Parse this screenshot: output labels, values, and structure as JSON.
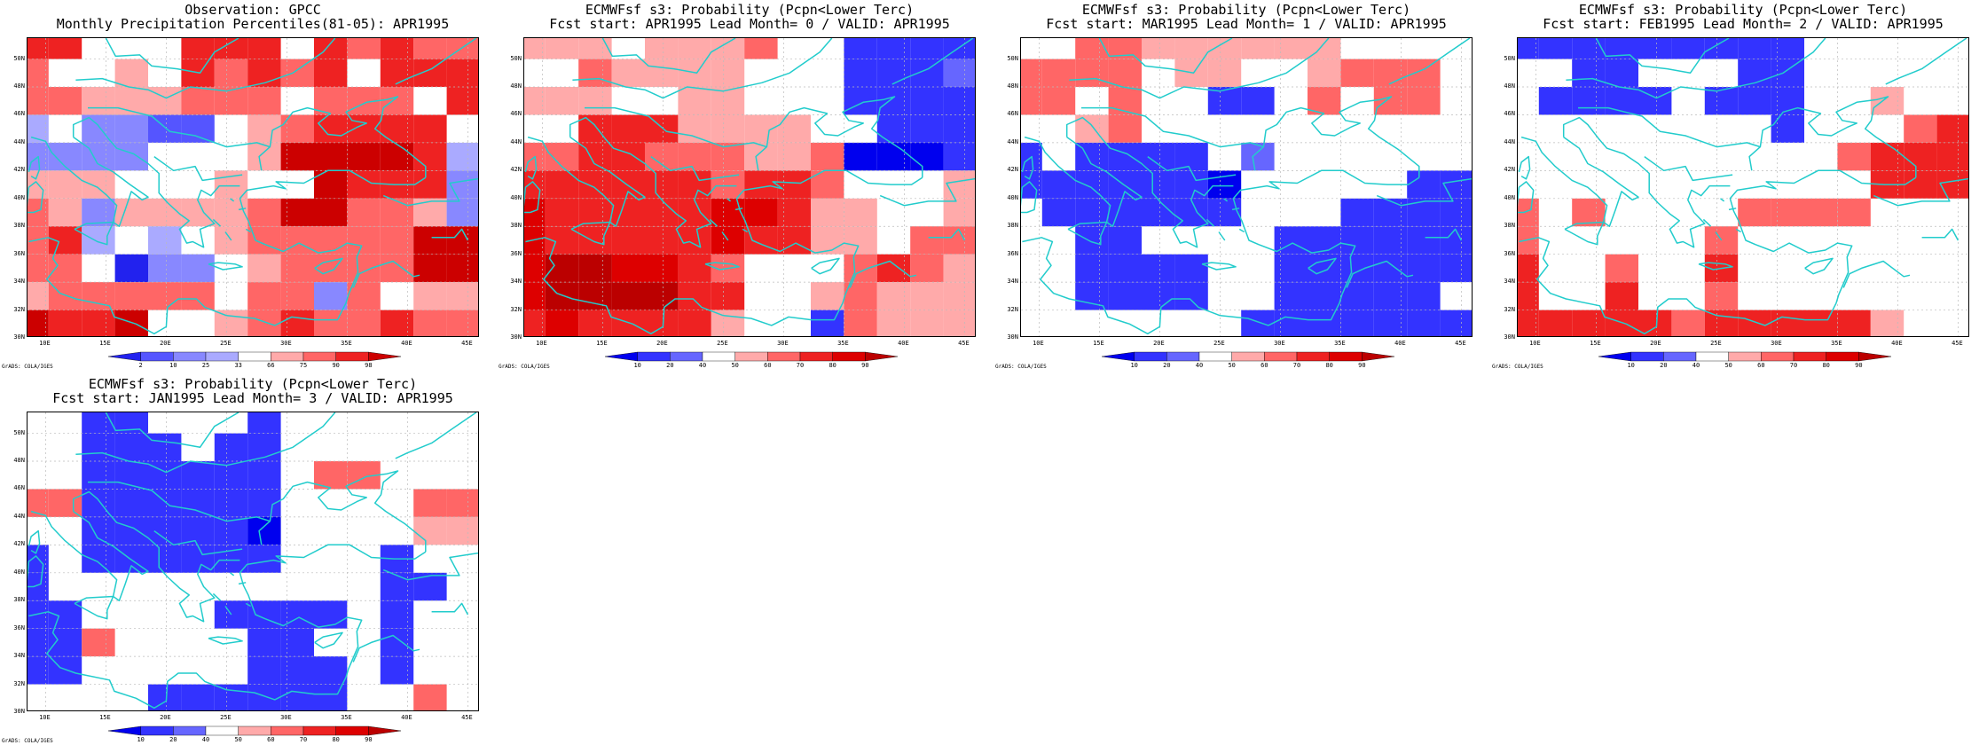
{
  "credit": "GrADS: COLA/IGES",
  "lat_labels": [
    "30N",
    "32N",
    "34N",
    "36N",
    "38N",
    "40N",
    "42N",
    "44N",
    "46N",
    "48N",
    "50N"
  ],
  "lon_labels": [
    "10E",
    "15E",
    "20E",
    "25E",
    "30E",
    "35E",
    "40E",
    "45E"
  ],
  "map_extent": {
    "lon_min": 8.5,
    "lon_max": 46,
    "lat_min": 30,
    "lat_max": 51.5
  },
  "grid_cell_deg": 2.5,
  "colors": {
    "coast": "#22cccc",
    "grid": "#bbbbbb",
    "scale_obs": [
      "#2222ee",
      "#5555ff",
      "#8888ff",
      "#aaaaff",
      "#ffffff",
      "#ffaaaa",
      "#ff6666",
      "#ee2222",
      "#cc0000"
    ],
    "scale_prob": [
      "#0000ee",
      "#3333ff",
      "#6666ff",
      "#ffffff",
      "#ffaaaa",
      "#ff6666",
      "#ee2222",
      "#dd0000",
      "#bb0000"
    ]
  },
  "panels": [
    {
      "title_line1": "Observation: GPCC",
      "title_line2": "Monthly Precipitation Percentiles(81-05): APR1995",
      "colorbar_ticks": [
        "2",
        "10",
        "25",
        "33",
        "66",
        "75",
        "90",
        "98"
      ],
      "palette": "scale_obs",
      "grid": [
        "77444777476766",
        "64454767679777",
        "66555666966697",
        "34221145677774",
        "22224445888873",
        "55544454487772",
        "65255556886652",
        "67343456666688",
        "66402245666688",
        "56666646626455",
        "87784456766766",
        "77748878664666"
      ]
    },
    {
      "title_line1": "ECMWFsf s3: Probability (Pcpn<Lower Terc)",
      "title_line2": "Fcst start: APR1995  Lead Month= 0 / VALID: APR1995",
      "colorbar_ticks": [
        "10",
        "20",
        "40",
        "50",
        "60",
        "70",
        "80",
        "90"
      ],
      "palette": "scale_prob",
      "grid": [
        "44434445331111",
        "33544443331112",
        "44433443331111",
        "33666444433111",
        "55665554450001",
        "66666656653334",
        "76666677644334",
        "76666676644355",
        "78877653335654",
        "78888663345444",
        "67666643315444",
        "22334444433011"
      ]
    },
    {
      "title_line1": "ECMWFsf s3: Probability (Pcpn<Lower Terc)",
      "title_line2": "Fcst start: MAR1995  Lead Month= 1 / VALID: APR1995",
      "colorbar_ticks": [
        "10",
        "20",
        "40",
        "50",
        "60",
        "70",
        "80",
        "90"
      ],
      "palette": "scale_prob",
      "grid": [
        "33554444443333",
        "55553443345553",
        "55353311353553",
        "33453333333333",
        "13111132333333",
        "11111103333311",
        "31111113331111",
        "33113333111111",
        "33111133111111",
        "33111133111113",
        "33333331111111",
        "53533333111111"
      ]
    },
    {
      "title_line1": "ECMWFsf s3: Probability (Pcpn<Lower Terc)",
      "title_line2": "Fcst start: FEB1995  Lead Month= 2 / VALID: APR1995",
      "colorbar_ticks": [
        "10",
        "20",
        "40",
        "50",
        "60",
        "70",
        "80",
        "90"
      ],
      "palette": "scale_prob",
      "grid": [
        "11111111133333",
        "33113331133333",
        "31111311133433",
        "33333333133356",
        "33333333335666",
        "33333333333666",
        "53533335555333",
        "53333353333333",
        "63353363333333",
        "63363353333333",
        "66666566666433",
        "66666666655545"
      ]
    },
    {
      "title_line1": "ECMWFsf s3: Probability (Pcpn<Lower Terc)",
      "title_line2": "Fcst start: JAN1995  Lead Month= 3 / VALID: APR1995",
      "colorbar_ticks": [
        "10",
        "20",
        "40",
        "50",
        "60",
        "70",
        "80",
        "90"
      ],
      "palette": "scale_prob",
      "grid": [
        "33113331333333",
        "33111311333333",
        "33111111355333",
        "55111111333355",
        "33111110333344",
        "13111111333133",
        "13333333333113",
        "11333311113133",
        "11533331133133",
        "11333331113133",
        "33331111113353",
        "31331111111353"
      ]
    }
  ]
}
